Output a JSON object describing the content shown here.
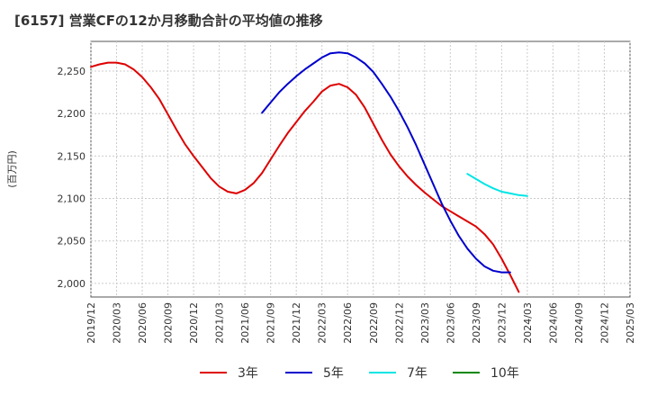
{
  "chart_data": {
    "type": "line",
    "title": "[6157]  営業CFの12か月移動合計の平均値の推移",
    "ylabel": "(百万円)",
    "xlabel": "",
    "ylim": [
      1984,
      2285
    ],
    "yticks": [
      2000,
      2050,
      2100,
      2150,
      2200,
      2250
    ],
    "ytick_labels": [
      "2,000",
      "2,050",
      "2,100",
      "2,150",
      "2,200",
      "2,250"
    ],
    "x_start": "2019-12",
    "x_end": "2025-03",
    "xtick_labels": [
      "2019/12",
      "2020/03",
      "2020/06",
      "2020/09",
      "2020/12",
      "2021/03",
      "2021/06",
      "2021/09",
      "2021/12",
      "2022/03",
      "2022/06",
      "2022/09",
      "2022/12",
      "2023/03",
      "2023/06",
      "2023/09",
      "2023/12",
      "2024/03",
      "2024/06",
      "2024/09",
      "2024/12",
      "2025/03"
    ],
    "grid": true,
    "legend_position": "bottom",
    "series": [
      {
        "name": "3年",
        "color": "#dd0000",
        "start": "2019-12",
        "values": [
          2255,
          2258,
          2260,
          2260,
          2258,
          2252,
          2243,
          2231,
          2217,
          2199,
          2181,
          2164,
          2150,
          2137,
          2124,
          2114,
          2108,
          2106,
          2110,
          2118,
          2130,
          2146,
          2162,
          2177,
          2190,
          2203,
          2214,
          2226,
          2233,
          2235,
          2231,
          2222,
          2207,
          2188,
          2169,
          2152,
          2138,
          2126,
          2116,
          2107,
          2099,
          2091,
          2085,
          2079,
          2073,
          2067,
          2058,
          2046,
          2029,
          2010,
          1990
        ]
      },
      {
        "name": "5年",
        "color": "#0000cc",
        "start": "2021-08",
        "values": [
          2201,
          2213,
          2225,
          2235,
          2244,
          2252,
          2259,
          2266,
          2271,
          2272,
          2271,
          2266,
          2259,
          2249,
          2235,
          2220,
          2203,
          2184,
          2163,
          2140,
          2117,
          2094,
          2074,
          2056,
          2041,
          2029,
          2020,
          2015,
          2013,
          2013
        ]
      },
      {
        "name": "7年",
        "color": "#00e5e5",
        "start": "2023-08",
        "values": [
          2129,
          2123,
          2117,
          2112,
          2108,
          2106,
          2104,
          2103
        ]
      },
      {
        "name": "10年",
        "color": "#008800",
        "start": "2025-03",
        "values": []
      }
    ]
  }
}
